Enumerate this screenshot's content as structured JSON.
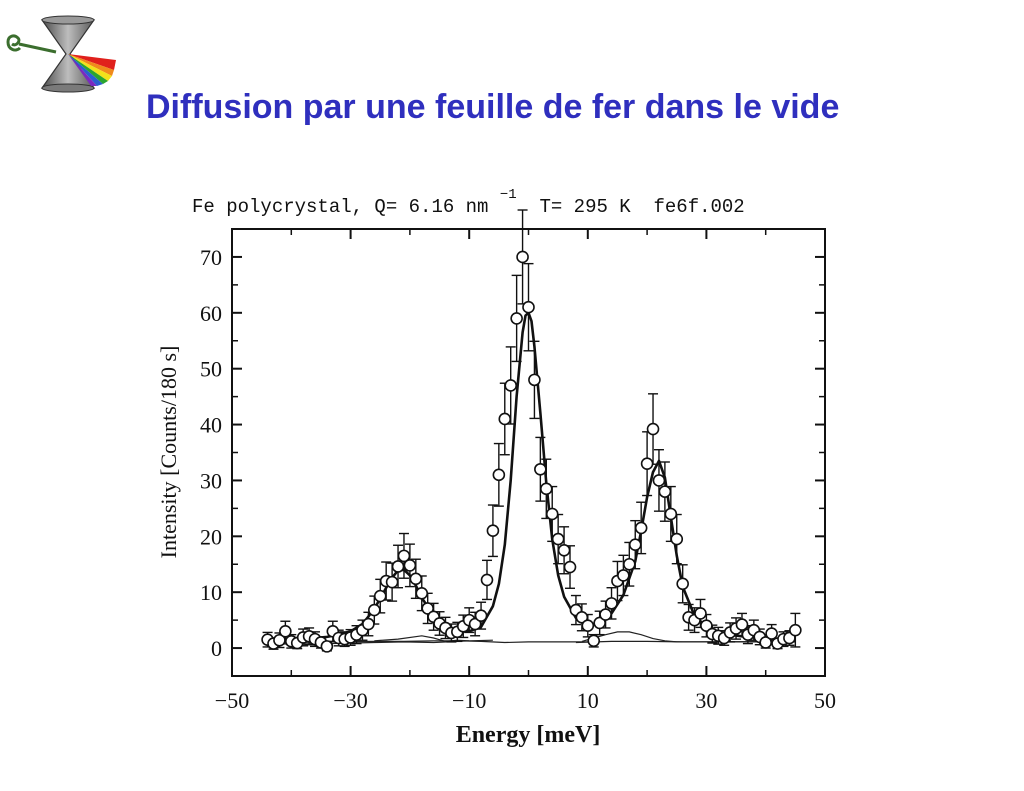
{
  "slide": {
    "title": "Diffusion par une feuille de fer dans le vide",
    "title_color": "#2f2fbe",
    "logo_icon": "hourglass-spectrum-logo-icon"
  },
  "chart_data": {
    "type": "scatter",
    "title_parts": {
      "prefix": "Fe polycrystal, Q= 6.16 nm",
      "superscript": "−1",
      "suffix": " T= 295 K  fe6f.002"
    },
    "xlabel": "Energy [meV]",
    "ylabel": "Intensity [Counts/180 s]",
    "xlim": [
      -50,
      50
    ],
    "ylim": [
      -5,
      75
    ],
    "xticks": [
      -50,
      -30,
      -10,
      10,
      30,
      50
    ],
    "xtick_labels": [
      "−50",
      "−30",
      "−10",
      "10",
      "30",
      "50"
    ],
    "yticks": [
      0,
      10,
      20,
      30,
      40,
      50,
      60,
      70
    ],
    "ytick_labels": [
      "0",
      "10",
      "20",
      "30",
      "40",
      "50",
      "60",
      "70"
    ],
    "grid": false,
    "legend": false,
    "series": [
      {
        "marker": "open-circle",
        "error_bars": true,
        "x": [
          -44,
          -43,
          -42,
          -41,
          -40,
          -39,
          -38,
          -37,
          -36,
          -35,
          -34,
          -33,
          -32,
          -31,
          -30,
          -29,
          -28,
          -27,
          -26,
          -25,
          -24,
          -23,
          -22,
          -21,
          -20,
          -19,
          -18,
          -17,
          -16,
          -15,
          -14,
          -13,
          -12,
          -11,
          -10,
          -9,
          -8,
          -7,
          -6,
          -5,
          -4,
          -3,
          -2,
          -1,
          0,
          1,
          2,
          3,
          4,
          5,
          6,
          7,
          8,
          9,
          10,
          11,
          12,
          13,
          14,
          15,
          16,
          17,
          18,
          19,
          20,
          21,
          22,
          23,
          24,
          25,
          26,
          27,
          28,
          29,
          30,
          31,
          32,
          33,
          34,
          35,
          36,
          37,
          38,
          39,
          40,
          41,
          42,
          43,
          44,
          45
        ],
        "y": [
          1.5,
          0.8,
          1.4,
          3.0,
          1.2,
          0.9,
          1.9,
          2.1,
          1.6,
          1.0,
          0.3,
          3.0,
          1.8,
          1.6,
          1.9,
          2.4,
          3.2,
          4.3,
          6.8,
          9.3,
          12.0,
          11.8,
          14.6,
          16.5,
          14.8,
          12.4,
          9.8,
          7.1,
          5.6,
          4.4,
          3.6,
          2.7,
          2.9,
          3.9,
          5.0,
          4.3,
          5.8,
          12.2,
          21.0,
          31.0,
          41.0,
          47.0,
          59.0,
          70.0,
          61.0,
          48.0,
          32.0,
          28.5,
          24.0,
          19.5,
          17.5,
          14.5,
          6.8,
          5.5,
          4.0,
          1.3,
          4.5,
          6.0,
          8.0,
          12.0,
          13.0,
          15.0,
          18.5,
          21.5,
          33.0,
          39.2,
          30.0,
          28.0,
          24.0,
          19.5,
          11.5,
          5.5,
          5.0,
          6.2,
          4.0,
          2.5,
          2.2,
          1.8,
          2.8,
          3.5,
          4.2,
          2.4,
          3.2,
          2.0,
          1.0,
          2.6,
          0.8,
          1.6,
          1.8,
          3.2
        ],
        "yerr": [
          1.3,
          1.0,
          1.3,
          1.8,
          1.2,
          1.0,
          1.5,
          1.5,
          1.3,
          1.0,
          0.8,
          1.8,
          1.4,
          1.3,
          1.4,
          1.6,
          1.8,
          2.1,
          2.5,
          3.0,
          3.4,
          3.4,
          3.8,
          4.0,
          3.8,
          3.5,
          3.1,
          2.7,
          2.4,
          2.1,
          1.9,
          1.6,
          1.7,
          2.0,
          2.2,
          2.1,
          2.4,
          3.5,
          4.6,
          5.6,
          6.4,
          6.9,
          7.7,
          8.4,
          7.8,
          6.9,
          5.7,
          5.3,
          4.9,
          4.4,
          4.2,
          3.8,
          2.6,
          2.4,
          2.0,
          1.1,
          2.1,
          2.4,
          2.8,
          3.5,
          3.6,
          3.9,
          4.3,
          4.6,
          5.7,
          6.3,
          5.5,
          5.3,
          4.9,
          4.4,
          3.4,
          2.3,
          2.2,
          2.5,
          2.0,
          1.6,
          1.5,
          1.3,
          1.7,
          1.9,
          2.0,
          1.6,
          1.8,
          1.4,
          1.0,
          1.6,
          0.9,
          1.3,
          1.3,
          3.0
        ]
      },
      {
        "role": "total-fit",
        "style": "solid-thick",
        "x": [
          -44,
          -42,
          -40,
          -38,
          -36,
          -34,
          -32,
          -30,
          -28,
          -26,
          -24,
          -23,
          -22,
          -21,
          -20,
          -19,
          -18,
          -16,
          -14,
          -12,
          -10,
          -8,
          -6,
          -5,
          -4,
          -3,
          -2,
          -1,
          -0.5,
          0,
          0.5,
          1,
          2,
          3,
          4,
          5,
          6,
          8,
          10,
          12,
          14,
          16,
          18,
          19,
          20,
          21,
          22,
          23,
          24,
          25,
          26,
          28,
          30,
          32,
          34,
          36,
          38,
          40,
          42,
          44
        ],
        "y": [
          1.3,
          1.4,
          1.5,
          1.6,
          1.8,
          2.0,
          2.4,
          3.0,
          4.3,
          7.0,
          10.8,
          12.6,
          13.9,
          14.0,
          13.0,
          11.2,
          9.0,
          5.8,
          3.9,
          3.0,
          3.0,
          3.8,
          7.5,
          11.5,
          18.5,
          30.0,
          45.0,
          56.5,
          59.5,
          60.0,
          58.5,
          54.0,
          42.0,
          29.5,
          19.5,
          13.0,
          9.2,
          5.4,
          4.2,
          4.5,
          6.2,
          9.5,
          15.5,
          21.0,
          27.0,
          31.5,
          33.5,
          30.5,
          23.5,
          16.5,
          11.0,
          5.8,
          3.8,
          2.9,
          2.4,
          2.1,
          1.9,
          1.7,
          1.6,
          1.5
        ]
      },
      {
        "role": "background-lines",
        "style": "solid-thin",
        "segments": [
          {
            "x": [
              -44,
              -34,
              -26,
              -21,
              -16,
              -12,
              -8,
              -4,
              0,
              4,
              8,
              10
            ],
            "y": [
              0.9,
              1.1,
              1.2,
              1.2,
              1.3,
              1.3,
              1.2,
              1.0,
              1.1,
              1.1,
              1.1,
              1.1
            ]
          },
          {
            "x": [
              -44,
              -34,
              -26,
              -21,
              -16,
              -12,
              -10
            ],
            "y": [
              0.7,
              0.8,
              1.0,
              1.1,
              1.0,
              1.2,
              1.3
            ]
          },
          {
            "x": [
              -26,
              -22,
              -18,
              -16,
              -14,
              -12,
              -10,
              -6
            ],
            "y": [
              1.3,
              1.6,
              2.2,
              1.8,
              1.2,
              1.4,
              1.3,
              1.4
            ]
          },
          {
            "x": [
              9,
              11,
              13,
              15,
              17,
              19,
              21,
              23,
              25,
              29,
              45
            ],
            "y": [
              1.2,
              1.8,
              2.4,
              2.9,
              2.9,
              2.4,
              1.7,
              1.3,
              1.1,
              1.1,
              1.2
            ]
          },
          {
            "x": [
              8,
              14,
              20,
              26,
              32,
              38,
              45
            ],
            "y": [
              1.0,
              1.2,
              1.2,
              1.1,
              1.1,
              1.1,
              1.1
            ]
          }
        ]
      }
    ]
  }
}
